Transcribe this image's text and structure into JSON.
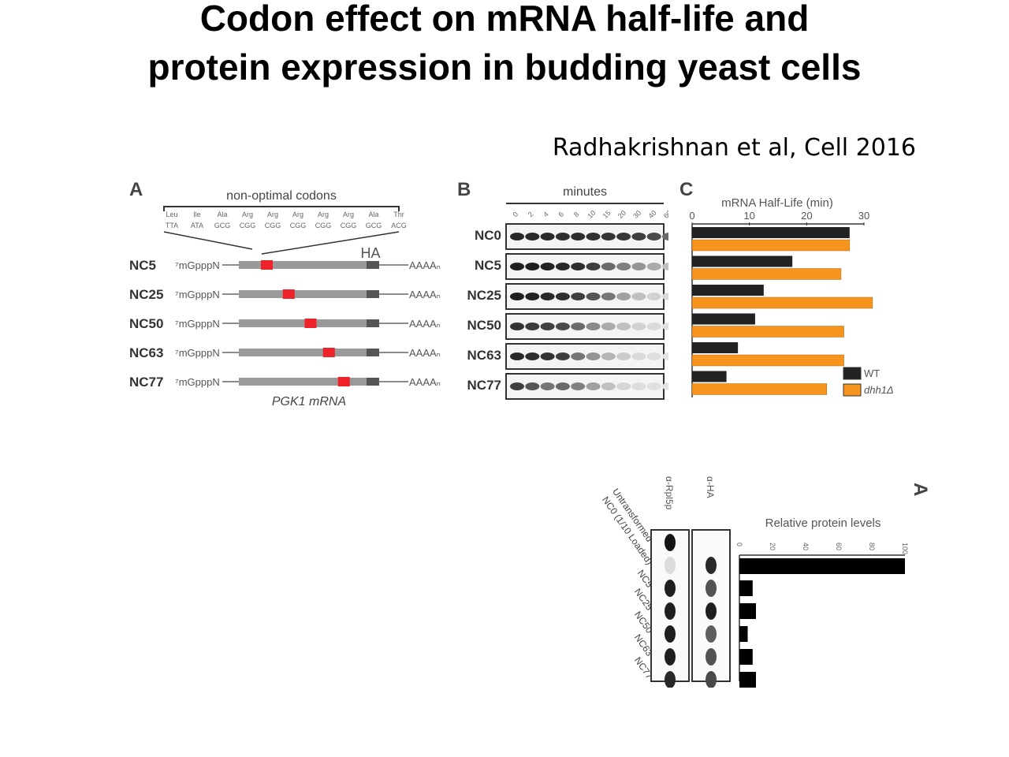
{
  "slide": {
    "title_line1": "Codon effect on mRNA half-life and",
    "title_line2": "protein expression in budding yeast cells",
    "citation": "Radhakrishnan et al, Cell 2016"
  },
  "panelA": {
    "letter": "A",
    "header": "non-optimal codons",
    "amino_acids": [
      "Leu",
      "Ile",
      "Ala",
      "Arg",
      "Arg",
      "Arg",
      "Arg",
      "Arg",
      "Ala",
      "Thr"
    ],
    "codons": [
      "TTA",
      "ATA",
      "GCG",
      "CGG",
      "CGG",
      "CGG",
      "CGG",
      "CGG",
      "GCG",
      "ACG"
    ],
    "tag": "HA",
    "cap": "⁷mGpppN",
    "polyA": "AAAAₙ",
    "constructs": [
      {
        "name": "NC5",
        "pos": 0.11
      },
      {
        "name": "NC25",
        "pos": 0.3
      },
      {
        "name": "NC50",
        "pos": 0.49
      },
      {
        "name": "NC63",
        "pos": 0.65
      },
      {
        "name": "NC77",
        "pos": 0.78
      }
    ],
    "footer": "PGK1 mRNA"
  },
  "panelB": {
    "letter": "B",
    "header": "minutes",
    "timepoints": [
      "0",
      "2",
      "4",
      "6",
      "8",
      "10",
      "15",
      "20",
      "30",
      "40",
      "60"
    ],
    "rows": [
      {
        "name": "NC0",
        "intensity": [
          0.9,
          0.9,
          0.9,
          0.88,
          0.88,
          0.87,
          0.85,
          0.84,
          0.8,
          0.75,
          0.6
        ]
      },
      {
        "name": "NC5",
        "intensity": [
          0.95,
          0.95,
          0.93,
          0.9,
          0.88,
          0.8,
          0.6,
          0.5,
          0.4,
          0.3,
          0.2
        ]
      },
      {
        "name": "NC25",
        "intensity": [
          0.95,
          0.93,
          0.9,
          0.88,
          0.8,
          0.7,
          0.55,
          0.35,
          0.2,
          0.12,
          0.08
        ]
      },
      {
        "name": "NC50",
        "intensity": [
          0.85,
          0.82,
          0.8,
          0.75,
          0.6,
          0.45,
          0.3,
          0.2,
          0.12,
          0.08,
          0.05
        ]
      },
      {
        "name": "NC63",
        "intensity": [
          0.9,
          0.88,
          0.85,
          0.8,
          0.55,
          0.4,
          0.25,
          0.15,
          0.08,
          0.06,
          0.04
        ]
      },
      {
        "name": "NC77",
        "intensity": [
          0.8,
          0.7,
          0.55,
          0.6,
          0.5,
          0.35,
          0.2,
          0.1,
          0.06,
          0.05,
          0.04
        ]
      }
    ]
  },
  "panelC": {
    "letter": "C"
  },
  "bottom_panel": {
    "letter": "A",
    "lanes": [
      "Untransformed",
      "NC0 (1/10 Loaded)",
      "NC5",
      "NC25",
      "NC50",
      "NC63",
      "NC77"
    ],
    "blot_labels": [
      "α-Rpl5p",
      "α-HA"
    ]
  },
  "chart_data": [
    {
      "type": "bar",
      "orientation": "horizontal",
      "title": "mRNA Half-Life (min)",
      "categories": [
        "NC0",
        "NC5",
        "NC25",
        "NC50",
        "NC63",
        "NC77"
      ],
      "xlim": [
        0,
        30
      ],
      "xticks": [
        "0",
        "10",
        "20",
        "30"
      ],
      "legend_position": "bottom-right",
      "series": [
        {
          "name": "WT",
          "color": "#222222",
          "values": [
            27.5,
            17.5,
            12.5,
            11,
            8,
            6
          ]
        },
        {
          "name": "dhh1Δ",
          "color": "#f7941d",
          "values": [
            27.5,
            26,
            31.5,
            26.5,
            26.5,
            23.5
          ]
        }
      ]
    },
    {
      "type": "bar",
      "orientation": "horizontal",
      "title": "Relative protein levels",
      "categories": [
        "Untransformed",
        "NC0 (1/10 Loaded)",
        "NC5",
        "NC25",
        "NC50",
        "NC63",
        "NC77"
      ],
      "xlim": [
        0,
        100
      ],
      "xticks": [
        "0",
        "20",
        "40",
        "60",
        "80",
        "100"
      ],
      "series": [
        {
          "color": "#000000",
          "values": [
            0,
            100,
            8,
            10,
            5,
            8,
            10
          ]
        }
      ]
    }
  ]
}
